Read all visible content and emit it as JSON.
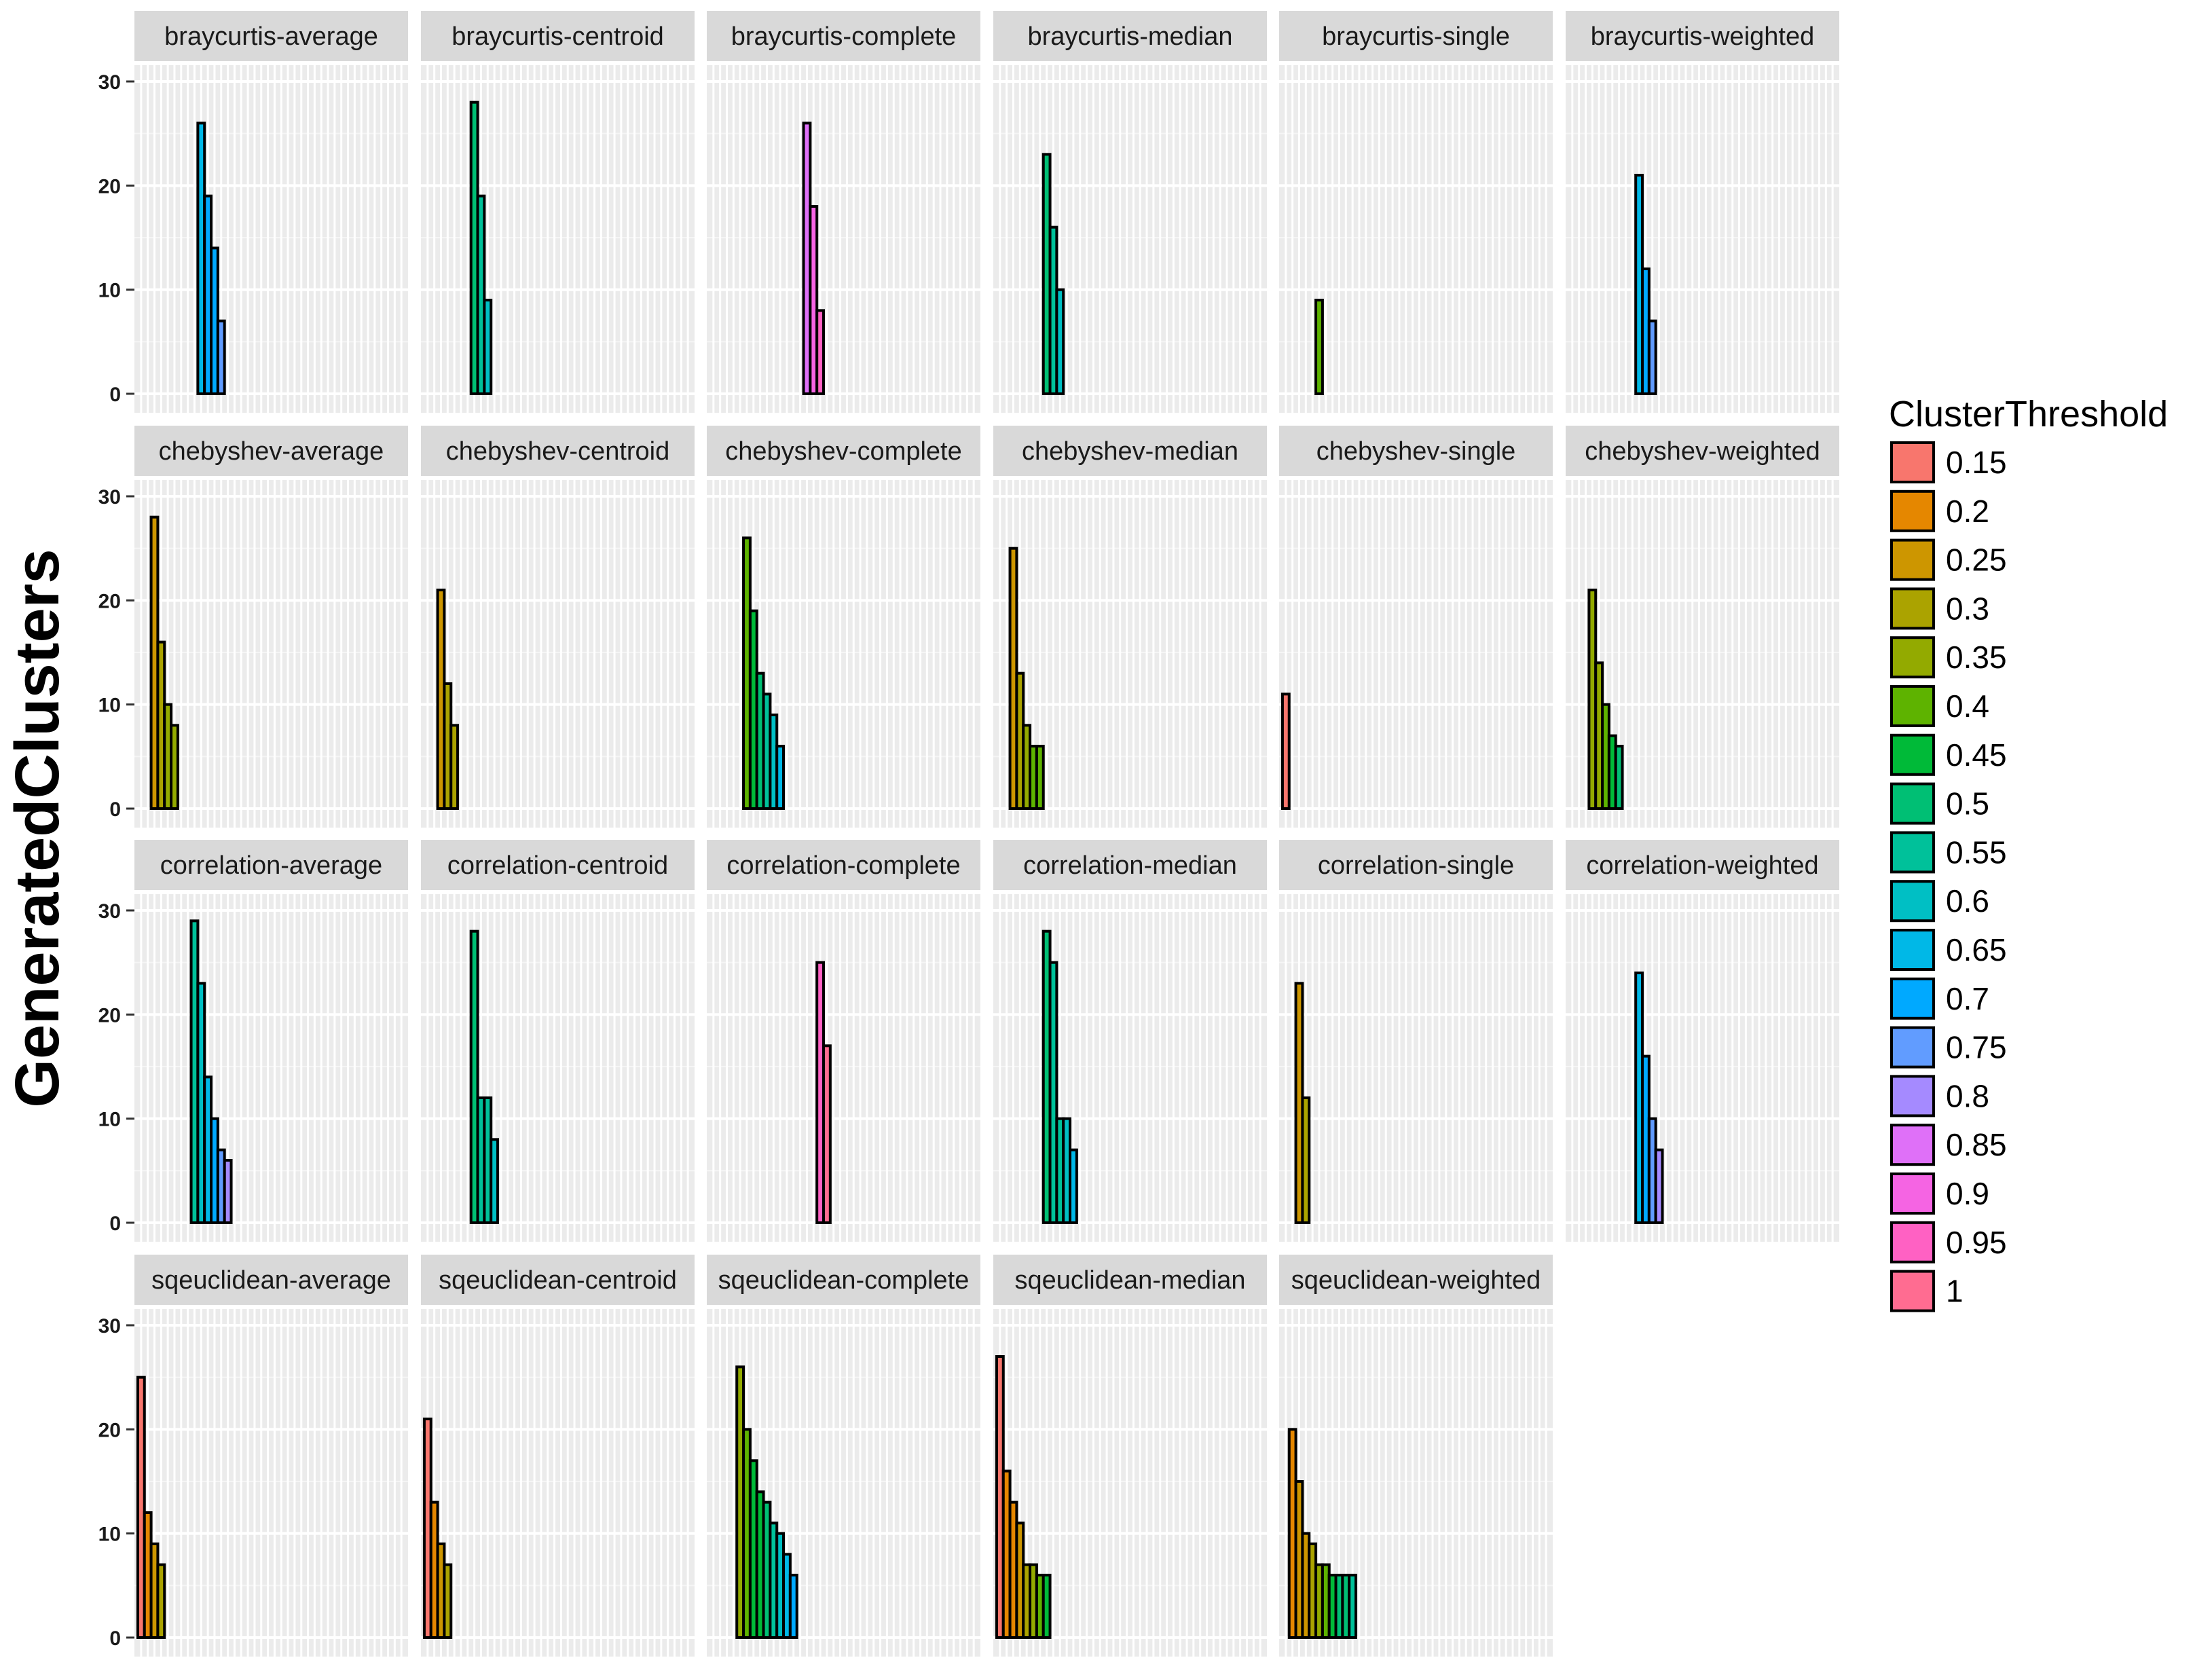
{
  "chart_data": {
    "type": "bar",
    "ylabel": "GeneratedClusters",
    "xlabel": "",
    "ylim": [
      0,
      30
    ],
    "y_ticks": [
      0,
      10,
      20,
      30
    ],
    "x_slots": 40,
    "grid": true,
    "legend": {
      "title": "ClusterThreshold",
      "placement": "right",
      "entries": [
        {
          "label": "0.15",
          "color": "#F8766D"
        },
        {
          "label": "0.2",
          "color": "#E58700"
        },
        {
          "label": "0.25",
          "color": "#CD9600"
        },
        {
          "label": "0.3",
          "color": "#ABA300"
        },
        {
          "label": "0.35",
          "color": "#93AA00"
        },
        {
          "label": "0.4",
          "color": "#5EB300"
        },
        {
          "label": "0.45",
          "color": "#00BA38"
        },
        {
          "label": "0.5",
          "color": "#00BF74"
        },
        {
          "label": "0.55",
          "color": "#00C19A"
        },
        {
          "label": "0.6",
          "color": "#00BFC4"
        },
        {
          "label": "0.65",
          "color": "#00B8E7"
        },
        {
          "label": "0.7",
          "color": "#00A9FF"
        },
        {
          "label": "0.75",
          "color": "#619CFF"
        },
        {
          "label": "0.8",
          "color": "#A58AFF"
        },
        {
          "label": "0.85",
          "color": "#DF70F8"
        },
        {
          "label": "0.9",
          "color": "#F564E3"
        },
        {
          "label": "0.95",
          "color": "#FF61C3"
        },
        {
          "label": "1",
          "color": "#FF6C91"
        }
      ]
    },
    "panels": [
      {
        "title": "braycurtis-average",
        "bars": [
          {
            "threshold": "0.65",
            "x": 10,
            "value": 26
          },
          {
            "threshold": "0.7",
            "x": 11,
            "value": 19
          },
          {
            "threshold": "0.7",
            "x": 12,
            "value": 14
          },
          {
            "threshold": "0.75",
            "x": 13,
            "value": 7
          }
        ]
      },
      {
        "title": "braycurtis-centroid",
        "bars": [
          {
            "threshold": "0.5",
            "x": 8,
            "value": 28
          },
          {
            "threshold": "0.55",
            "x": 9,
            "value": 19
          },
          {
            "threshold": "0.6",
            "x": 10,
            "value": 9
          }
        ]
      },
      {
        "title": "braycurtis-complete",
        "bars": [
          {
            "threshold": "0.85",
            "x": 15,
            "value": 26
          },
          {
            "threshold": "0.9",
            "x": 16,
            "value": 18
          },
          {
            "threshold": "0.95",
            "x": 17,
            "value": 8
          }
        ]
      },
      {
        "title": "braycurtis-median",
        "bars": [
          {
            "threshold": "0.5",
            "x": 8,
            "value": 23
          },
          {
            "threshold": "0.55",
            "x": 9,
            "value": 16
          },
          {
            "threshold": "0.6",
            "x": 10,
            "value": 10
          }
        ]
      },
      {
        "title": "braycurtis-single",
        "bars": [
          {
            "threshold": "0.4",
            "x": 6,
            "value": 9
          }
        ]
      },
      {
        "title": "braycurtis-weighted",
        "bars": [
          {
            "threshold": "0.65",
            "x": 11,
            "value": 21
          },
          {
            "threshold": "0.7",
            "x": 12,
            "value": 12
          },
          {
            "threshold": "0.75",
            "x": 13,
            "value": 7
          }
        ]
      },
      {
        "title": "chebyshev-average",
        "bars": [
          {
            "threshold": "0.25",
            "x": 3,
            "value": 28
          },
          {
            "threshold": "0.3",
            "x": 4,
            "value": 16
          },
          {
            "threshold": "0.35",
            "x": 5,
            "value": 10
          },
          {
            "threshold": "0.35",
            "x": 6,
            "value": 8
          }
        ]
      },
      {
        "title": "chebyshev-centroid",
        "bars": [
          {
            "threshold": "0.25",
            "x": 3,
            "value": 21
          },
          {
            "threshold": "0.3",
            "x": 4,
            "value": 12
          },
          {
            "threshold": "0.3",
            "x": 5,
            "value": 8
          }
        ]
      },
      {
        "title": "chebyshev-complete",
        "bars": [
          {
            "threshold": "0.4",
            "x": 6,
            "value": 26
          },
          {
            "threshold": "0.45",
            "x": 7,
            "value": 19
          },
          {
            "threshold": "0.5",
            "x": 8,
            "value": 13
          },
          {
            "threshold": "0.55",
            "x": 9,
            "value": 11
          },
          {
            "threshold": "0.6",
            "x": 10,
            "value": 9
          },
          {
            "threshold": "0.65",
            "x": 11,
            "value": 6
          }
        ]
      },
      {
        "title": "chebyshev-median",
        "bars": [
          {
            "threshold": "0.25",
            "x": 3,
            "value": 25
          },
          {
            "threshold": "0.3",
            "x": 4,
            "value": 13
          },
          {
            "threshold": "0.35",
            "x": 5,
            "value": 8
          },
          {
            "threshold": "0.4",
            "x": 6,
            "value": 6
          },
          {
            "threshold": "0.4",
            "x": 7,
            "value": 6
          }
        ]
      },
      {
        "title": "chebyshev-single",
        "bars": [
          {
            "threshold": "0.15",
            "x": 1,
            "value": 11
          }
        ]
      },
      {
        "title": "chebyshev-weighted",
        "bars": [
          {
            "threshold": "0.35",
            "x": 4,
            "value": 21
          },
          {
            "threshold": "0.35",
            "x": 5,
            "value": 14
          },
          {
            "threshold": "0.4",
            "x": 6,
            "value": 10
          },
          {
            "threshold": "0.45",
            "x": 7,
            "value": 7
          },
          {
            "threshold": "0.5",
            "x": 8,
            "value": 6
          }
        ]
      },
      {
        "title": "correlation-average",
        "bars": [
          {
            "threshold": "0.55",
            "x": 9,
            "value": 29
          },
          {
            "threshold": "0.6",
            "x": 10,
            "value": 23
          },
          {
            "threshold": "0.65",
            "x": 11,
            "value": 14
          },
          {
            "threshold": "0.7",
            "x": 12,
            "value": 10
          },
          {
            "threshold": "0.75",
            "x": 13,
            "value": 7
          },
          {
            "threshold": "0.8",
            "x": 14,
            "value": 6
          }
        ]
      },
      {
        "title": "correlation-centroid",
        "bars": [
          {
            "threshold": "0.5",
            "x": 8,
            "value": 28
          },
          {
            "threshold": "0.55",
            "x": 9,
            "value": 12
          },
          {
            "threshold": "0.55",
            "x": 10,
            "value": 12
          },
          {
            "threshold": "0.6",
            "x": 11,
            "value": 8
          }
        ]
      },
      {
        "title": "correlation-complete",
        "bars": [
          {
            "threshold": "0.95",
            "x": 17,
            "value": 25
          },
          {
            "threshold": "1",
            "x": 18,
            "value": 17
          }
        ]
      },
      {
        "title": "correlation-median",
        "bars": [
          {
            "threshold": "0.5",
            "x": 8,
            "value": 28
          },
          {
            "threshold": "0.55",
            "x": 9,
            "value": 25
          },
          {
            "threshold": "0.55",
            "x": 10,
            "value": 10
          },
          {
            "threshold": "0.6",
            "x": 11,
            "value": 10
          },
          {
            "threshold": "0.65",
            "x": 12,
            "value": 7
          }
        ]
      },
      {
        "title": "correlation-single",
        "bars": [
          {
            "threshold": "0.25",
            "x": 3,
            "value": 23
          },
          {
            "threshold": "0.3",
            "x": 4,
            "value": 12
          }
        ]
      },
      {
        "title": "correlation-weighted",
        "bars": [
          {
            "threshold": "0.65",
            "x": 11,
            "value": 24
          },
          {
            "threshold": "0.7",
            "x": 12,
            "value": 16
          },
          {
            "threshold": "0.75",
            "x": 13,
            "value": 10
          },
          {
            "threshold": "0.8",
            "x": 14,
            "value": 7
          }
        ]
      },
      {
        "title": "sqeuclidean-average",
        "bars": [
          {
            "threshold": "0.15",
            "x": 1,
            "value": 25
          },
          {
            "threshold": "0.2",
            "x": 2,
            "value": 12
          },
          {
            "threshold": "0.25",
            "x": 3,
            "value": 9
          },
          {
            "threshold": "0.3",
            "x": 4,
            "value": 7
          }
        ]
      },
      {
        "title": "sqeuclidean-centroid",
        "bars": [
          {
            "threshold": "0.15",
            "x": 1,
            "value": 21
          },
          {
            "threshold": "0.2",
            "x": 2,
            "value": 13
          },
          {
            "threshold": "0.25",
            "x": 3,
            "value": 9
          },
          {
            "threshold": "0.3",
            "x": 4,
            "value": 7
          }
        ]
      },
      {
        "title": "sqeuclidean-complete",
        "bars": [
          {
            "threshold": "0.35",
            "x": 5,
            "value": 26
          },
          {
            "threshold": "0.4",
            "x": 6,
            "value": 20
          },
          {
            "threshold": "0.45",
            "x": 7,
            "value": 17
          },
          {
            "threshold": "0.45",
            "x": 8,
            "value": 14
          },
          {
            "threshold": "0.5",
            "x": 9,
            "value": 13
          },
          {
            "threshold": "0.55",
            "x": 10,
            "value": 11
          },
          {
            "threshold": "0.6",
            "x": 11,
            "value": 10
          },
          {
            "threshold": "0.65",
            "x": 12,
            "value": 8
          },
          {
            "threshold": "0.7",
            "x": 13,
            "value": 6
          }
        ]
      },
      {
        "title": "sqeuclidean-median",
        "bars": [
          {
            "threshold": "0.15",
            "x": 1,
            "value": 27
          },
          {
            "threshold": "0.2",
            "x": 2,
            "value": 16
          },
          {
            "threshold": "0.2",
            "x": 3,
            "value": 13
          },
          {
            "threshold": "0.25",
            "x": 4,
            "value": 11
          },
          {
            "threshold": "0.3",
            "x": 5,
            "value": 7
          },
          {
            "threshold": "0.35",
            "x": 6,
            "value": 7
          },
          {
            "threshold": "0.4",
            "x": 7,
            "value": 6
          },
          {
            "threshold": "0.45",
            "x": 8,
            "value": 6
          }
        ]
      },
      {
        "title": "sqeuclidean-weighted",
        "bars": [
          {
            "threshold": "0.2",
            "x": 2,
            "value": 20
          },
          {
            "threshold": "0.25",
            "x": 3,
            "value": 15
          },
          {
            "threshold": "0.25",
            "x": 4,
            "value": 10
          },
          {
            "threshold": "0.3",
            "x": 5,
            "value": 9
          },
          {
            "threshold": "0.35",
            "x": 6,
            "value": 7
          },
          {
            "threshold": "0.4",
            "x": 7,
            "value": 7
          },
          {
            "threshold": "0.45",
            "x": 8,
            "value": 6
          },
          {
            "threshold": "0.5",
            "x": 9,
            "value": 6
          },
          {
            "threshold": "0.5",
            "x": 10,
            "value": 6
          },
          {
            "threshold": "0.55",
            "x": 11,
            "value": 6
          }
        ]
      }
    ]
  }
}
